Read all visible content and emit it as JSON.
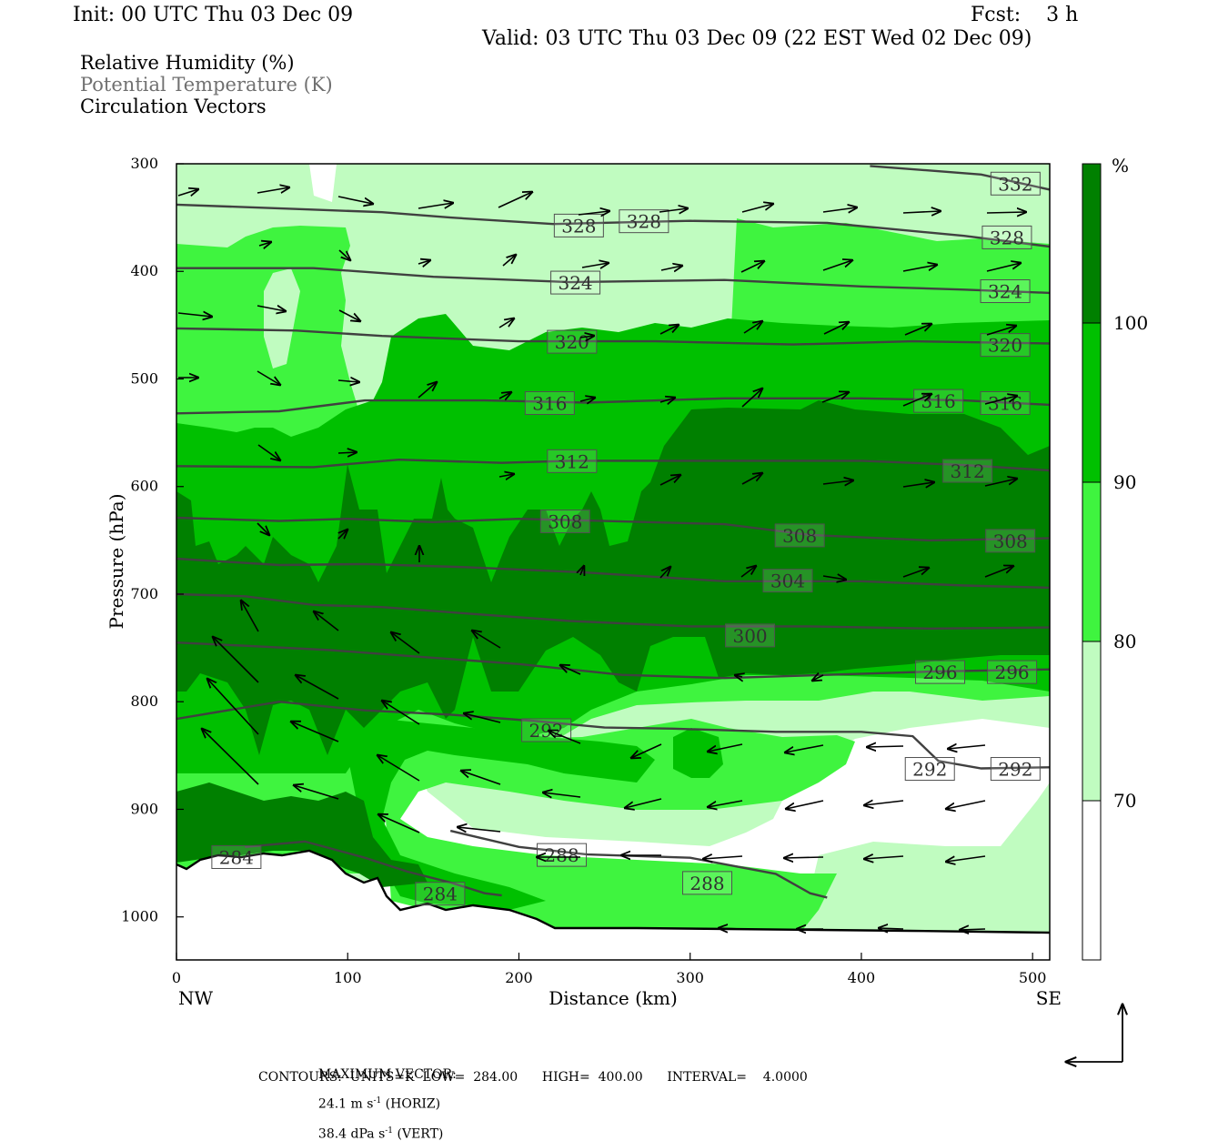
{
  "header": {
    "init": "Init: 00 UTC Thu 03 Dec 09",
    "fcst": "Fcst:    3 h",
    "valid": "Valid: 03 UTC Thu 03 Dec 09 (22 EST Wed 02 Dec 09)"
  },
  "legend": {
    "rh": "Relative Humidity (%)",
    "theta": "Potential Temperature (K)",
    "vectors": "Circulation Vectors"
  },
  "footer": {
    "max_label": "MAXIMUM VECTOR:",
    "horiz_value": "24.1 m s",
    "horiz_exp": "-1",
    "horiz_unit": " (HORIZ)",
    "vert_value": "38.4 dPa s",
    "vert_exp": "-1",
    "vert_unit": " (VERT)",
    "contours": "CONTOURS:  UNITS=K  LOW=  284.00      HIGH=  400.00      INTERVAL=    4.0000"
  },
  "colors": {
    "rh_70_80": "#c0fcc0",
    "rh_80_90": "#3ff43f",
    "rh_90_100": "#00c000",
    "rh_100": "#008000",
    "contour": "#404040"
  },
  "chart_data": {
    "type": "cross-section",
    "xlabel": "Distance (km)",
    "ylabel": "Pressure (hPa)",
    "x_ticks": [
      0,
      100,
      200,
      300,
      400,
      500
    ],
    "y_ticks": [
      300,
      400,
      500,
      600,
      700,
      800,
      900,
      1000
    ],
    "xlim": [
      0,
      510
    ],
    "ylim": [
      300,
      1040
    ],
    "y_inverted": true,
    "left_end_label": "NW",
    "right_end_label": "SE",
    "colorbar": {
      "unit": "%",
      "levels": [
        70,
        80,
        90,
        100
      ]
    },
    "contour_units": "K",
    "contour_low": 284.0,
    "contour_high": 400.0,
    "contour_interval": 4.0,
    "isentropes": [
      {
        "theta": 332,
        "points": [
          [
            405,
            302
          ],
          [
            470,
            310
          ],
          [
            510,
            324
          ]
        ],
        "labels": [
          [
            490,
            318
          ]
        ]
      },
      {
        "theta": 328,
        "points": [
          [
            0,
            338
          ],
          [
            70,
            342
          ],
          [
            120,
            345
          ],
          [
            160,
            350
          ],
          [
            220,
            356
          ],
          [
            300,
            353
          ],
          [
            380,
            355
          ],
          [
            460,
            367
          ],
          [
            510,
            377
          ]
        ],
        "labels": [
          [
            235,
            357
          ],
          [
            273,
            353
          ],
          [
            485,
            368
          ]
        ]
      },
      {
        "theta": 324,
        "points": [
          [
            0,
            397
          ],
          [
            80,
            397
          ],
          [
            150,
            405
          ],
          [
            230,
            410
          ],
          [
            320,
            408
          ],
          [
            400,
            414
          ],
          [
            460,
            417
          ],
          [
            510,
            420
          ]
        ],
        "labels": [
          [
            233,
            410
          ],
          [
            484,
            418
          ]
        ]
      },
      {
        "theta": 320,
        "points": [
          [
            0,
            453
          ],
          [
            70,
            455
          ],
          [
            120,
            460
          ],
          [
            200,
            465
          ],
          [
            280,
            465
          ],
          [
            360,
            468
          ],
          [
            430,
            465
          ],
          [
            510,
            467
          ]
        ],
        "labels": [
          [
            231,
            465
          ],
          [
            484,
            468
          ]
        ]
      },
      {
        "theta": 316,
        "points": [
          [
            0,
            532
          ],
          [
            60,
            530
          ],
          [
            110,
            520
          ],
          [
            180,
            520
          ],
          [
            240,
            522
          ],
          [
            320,
            518
          ],
          [
            400,
            518
          ],
          [
            460,
            520
          ],
          [
            510,
            524
          ]
        ],
        "labels": [
          [
            218,
            522
          ],
          [
            445,
            520
          ],
          [
            484,
            522
          ]
        ]
      },
      {
        "theta": 312,
        "points": [
          [
            0,
            581
          ],
          [
            80,
            582
          ],
          [
            130,
            575
          ],
          [
            190,
            578
          ],
          [
            230,
            576
          ],
          [
            300,
            576
          ],
          [
            400,
            576
          ],
          [
            460,
            580
          ],
          [
            510,
            585
          ]
        ],
        "labels": [
          [
            231,
            576
          ],
          [
            462,
            585
          ]
        ]
      },
      {
        "theta": 308,
        "points": [
          [
            0,
            629
          ],
          [
            60,
            632
          ],
          [
            100,
            630
          ],
          [
            150,
            633
          ],
          [
            200,
            630
          ],
          [
            250,
            632
          ],
          [
            320,
            635
          ],
          [
            370,
            645
          ],
          [
            440,
            650
          ],
          [
            510,
            648
          ]
        ],
        "labels": [
          [
            227,
            632
          ],
          [
            364,
            645
          ],
          [
            487,
            650
          ]
        ]
      },
      {
        "theta": 304,
        "points": [
          [
            0,
            667
          ],
          [
            60,
            673
          ],
          [
            110,
            672
          ],
          [
            170,
            675
          ],
          [
            240,
            680
          ],
          [
            320,
            688
          ],
          [
            400,
            688
          ],
          [
            460,
            692
          ],
          [
            510,
            694
          ]
        ],
        "labels": [
          [
            357,
            687
          ]
        ]
      },
      {
        "theta": 300,
        "points": [
          [
            0,
            700
          ],
          [
            40,
            702
          ],
          [
            80,
            710
          ],
          [
            120,
            712
          ],
          [
            170,
            718
          ],
          [
            230,
            725
          ],
          [
            300,
            730
          ],
          [
            330,
            730
          ],
          [
            370,
            730
          ],
          [
            440,
            732
          ],
          [
            510,
            731
          ]
        ],
        "labels": [
          [
            335,
            738
          ]
        ]
      },
      {
        "theta": 296,
        "points": [
          [
            0,
            745
          ],
          [
            40,
            748
          ],
          [
            90,
            752
          ],
          [
            140,
            758
          ],
          [
            200,
            765
          ],
          [
            260,
            775
          ],
          [
            320,
            778
          ],
          [
            380,
            775
          ],
          [
            440,
            772
          ],
          [
            510,
            770
          ]
        ],
        "labels": [
          [
            446,
            772
          ],
          [
            488,
            772
          ]
        ]
      },
      {
        "theta": 292,
        "points": [
          [
            0,
            816
          ],
          [
            60,
            800
          ],
          [
            110,
            808
          ],
          [
            160,
            812
          ],
          [
            210,
            818
          ],
          [
            250,
            824
          ],
          [
            290,
            825
          ],
          [
            350,
            828
          ],
          [
            400,
            828
          ],
          [
            430,
            832
          ],
          [
            445,
            855
          ],
          [
            470,
            862
          ],
          [
            510,
            861
          ]
        ],
        "labels": [
          [
            216,
            826
          ],
          [
            440,
            862
          ],
          [
            490,
            862
          ]
        ]
      },
      {
        "theta": 288,
        "points": [
          [
            160,
            920
          ],
          [
            200,
            935
          ],
          [
            240,
            942
          ],
          [
            300,
            945
          ],
          [
            350,
            960
          ],
          [
            370,
            978
          ],
          [
            380,
            982
          ]
        ],
        "labels": [
          [
            225,
            942
          ],
          [
            310,
            968
          ]
        ]
      },
      {
        "theta": 284,
        "points": [
          [
            40,
            935
          ],
          [
            75,
            930
          ],
          [
            110,
            945
          ],
          [
            135,
            958
          ],
          [
            160,
            968
          ],
          [
            180,
            978
          ],
          [
            190,
            980
          ]
        ],
        "labels": [
          [
            35,
            944
          ],
          [
            154,
            978
          ]
        ]
      }
    ]
  }
}
